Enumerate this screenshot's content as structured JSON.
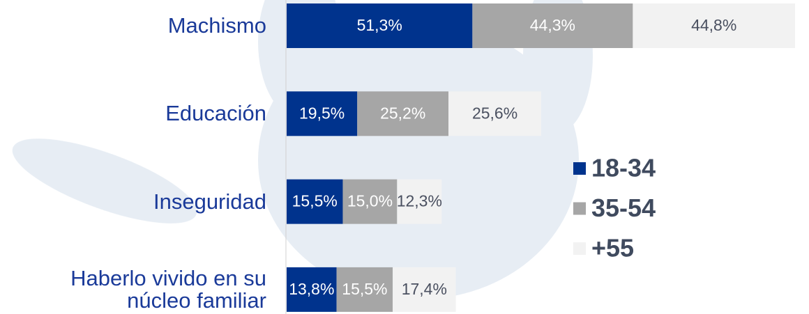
{
  "chart_data": {
    "type": "stacked-bar-horizontal",
    "categories": [
      "Machismo",
      "Educación",
      "Inseguridad",
      "Haberlo vivido en su núcleo familiar"
    ],
    "series": [
      {
        "name": "18-34",
        "color": "#00338d",
        "values": [
          51.3,
          19.5,
          15.5,
          13.8
        ],
        "value_labels": [
          "51,3%",
          "19,5%",
          "15,5%",
          "13,8%"
        ]
      },
      {
        "name": "35-54",
        "color": "#a6a6a6",
        "values": [
          44.3,
          25.2,
          15.0,
          15.5
        ],
        "value_labels": [
          "44,3%",
          "25,2%",
          "15,0%",
          "15,5%"
        ]
      },
      {
        "name": "+55",
        "color": "#f2f2f2",
        "values": [
          44.8,
          25.6,
          12.3,
          17.4
        ],
        "value_labels": [
          "44,8%",
          "25,6%",
          "12,3%",
          "17,4%"
        ]
      }
    ]
  }
}
